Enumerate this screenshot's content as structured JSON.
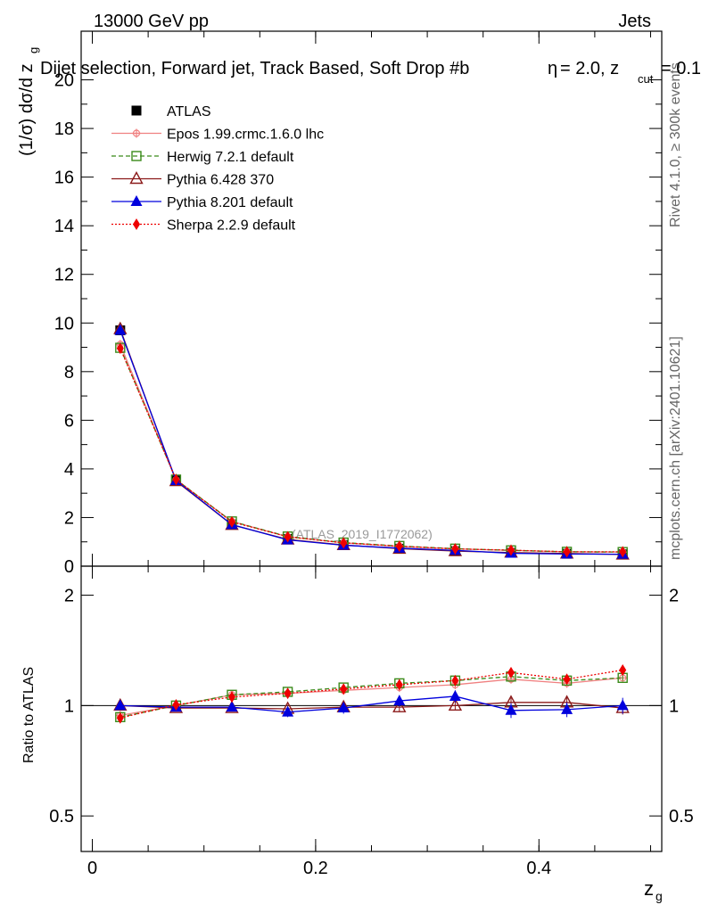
{
  "header": {
    "energy": "13000 GeV pp",
    "category": "Jets",
    "title": "Dijet selection, Forward jet, Track Based, Soft Drop #b",
    "title_suffix": "= 2.0, z",
    "title_sub": "cut",
    "title_end": "= 0.1",
    "title_glyph": "η"
  },
  "side": {
    "rivet": "Rivet 4.1.0, ≥ 300k events",
    "mcplots": "mcplots.cern.ch [arXiv:2401.10621]"
  },
  "watermark": "(ATLAS_2019_I1772062)",
  "chart_data": {
    "type": "line",
    "x": [
      0.025,
      0.075,
      0.125,
      0.175,
      0.225,
      0.275,
      0.325,
      0.375,
      0.425,
      0.475
    ],
    "xlim": [
      -0.01,
      0.51
    ],
    "xticks": [
      0,
      0.2,
      0.4
    ],
    "xtick_labels": [
      "0",
      "0.2",
      "0.4"
    ],
    "xlabel": "z",
    "xlabel_sub": "g",
    "main": {
      "ylabel": "(1/σ) dσ/d z",
      "ylabel_sub": "g",
      "ylim": [
        0,
        22
      ],
      "yticks": [
        0,
        2,
        4,
        6,
        8,
        10,
        12,
        14,
        16,
        18,
        20
      ],
      "ytick_labels": [
        "0",
        "2",
        "4",
        "6",
        "8",
        "10",
        "12",
        "14",
        "16",
        "18",
        "20"
      ]
    },
    "ratio": {
      "ylabel": "Ratio to ATLAS",
      "ylim": [
        0.4,
        2.4
      ],
      "yticks": [
        0.5,
        1,
        2
      ],
      "ytick_labels": [
        "0.5",
        "1",
        "2"
      ]
    },
    "series": [
      {
        "name": "ATLAS",
        "color": "#000000",
        "dash": "none",
        "marker": "square-filled",
        "values": [
          9.7,
          3.55,
          1.72,
          1.12,
          0.87,
          0.72,
          0.62,
          0.55,
          0.51,
          0.49
        ],
        "errors": [
          0.1,
          0.05,
          0.03,
          0.03,
          0.03,
          0.03,
          0.02,
          0.02,
          0.02,
          0.02
        ],
        "ratio": [
          1,
          1,
          1,
          1,
          1,
          1,
          1,
          1,
          1,
          1
        ],
        "ratio_err": [
          0.012,
          0.014,
          0.018,
          0.025,
          0.03,
          0.035,
          0.04,
          0.045,
          0.05,
          0.055
        ]
      },
      {
        "name": "Epos 1.99.crmc.1.6.0 lhc",
        "color": "#f08080",
        "dash": "none",
        "marker": "cross-circle",
        "values": [
          9.12,
          3.55,
          1.84,
          1.21,
          0.96,
          0.81,
          0.71,
          0.65,
          0.59,
          0.58
        ],
        "ratio": [
          0.94,
          1.0,
          1.07,
          1.08,
          1.1,
          1.12,
          1.14,
          1.18,
          1.15,
          1.19
        ],
        "ratio_err": [
          0.02,
          0.02,
          0.02,
          0.02,
          0.02,
          0.02,
          0.02,
          0.02,
          0.02,
          0.02
        ]
      },
      {
        "name": "Herwig 7.2.1 default",
        "color": "#3a8a1a",
        "dash": "5,3",
        "marker": "square-open",
        "values": [
          8.98,
          3.56,
          1.84,
          1.22,
          0.97,
          0.83,
          0.72,
          0.65,
          0.59,
          0.58
        ],
        "ratio": [
          0.93,
          1.0,
          1.07,
          1.09,
          1.12,
          1.15,
          1.17,
          1.2,
          1.17,
          1.19
        ],
        "ratio_err": [
          0.02,
          0.02,
          0.02,
          0.02,
          0.02,
          0.02,
          0.02,
          0.02,
          0.02,
          0.02
        ]
      },
      {
        "name": "Pythia 6.428 370",
        "color": "#8b1a1a",
        "dash": "none",
        "marker": "triangle-open",
        "values": [
          9.75,
          3.5,
          1.7,
          1.1,
          0.87,
          0.72,
          0.62,
          0.56,
          0.52,
          0.48
        ],
        "ratio": [
          1.0,
          0.985,
          0.985,
          0.98,
          0.99,
          0.99,
          1.0,
          1.02,
          1.02,
          0.985
        ],
        "ratio_err": [
          0.02,
          0.02,
          0.02,
          0.025,
          0.03,
          0.03,
          0.03,
          0.03,
          0.04,
          0.04
        ]
      },
      {
        "name": "Pythia 8.201 default",
        "color": "#0000dd",
        "dash": "none",
        "marker": "triangle-filled",
        "values": [
          9.7,
          3.52,
          1.71,
          1.08,
          0.86,
          0.74,
          0.65,
          0.53,
          0.5,
          0.49
        ],
        "ratio": [
          1.0,
          0.99,
          0.99,
          0.96,
          0.985,
          1.03,
          1.06,
          0.97,
          0.975,
          1.0
        ],
        "ratio_err": [
          0.02,
          0.02,
          0.025,
          0.03,
          0.035,
          0.035,
          0.04,
          0.045,
          0.045,
          0.05
        ]
      },
      {
        "name": "Sherpa 2.2.9 default",
        "color": "#ee0000",
        "dash": "2,2",
        "marker": "diamond-filled",
        "values": [
          8.96,
          3.56,
          1.82,
          1.21,
          0.96,
          0.82,
          0.71,
          0.66,
          0.59,
          0.59
        ],
        "ratio": [
          0.925,
          1.005,
          1.055,
          1.08,
          1.11,
          1.14,
          1.17,
          1.23,
          1.18,
          1.25
        ],
        "ratio_err": [
          0.02,
          0.02,
          0.02,
          0.02,
          0.02,
          0.02,
          0.02,
          0.02,
          0.02,
          0.02
        ]
      }
    ]
  }
}
